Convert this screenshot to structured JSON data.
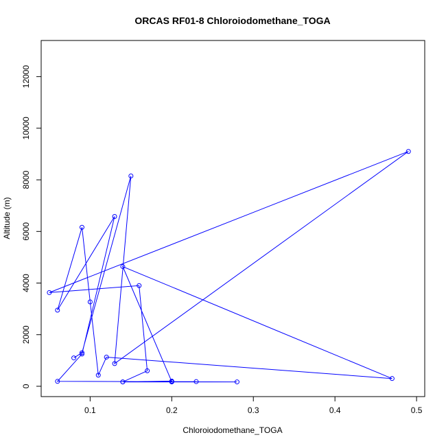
{
  "chart_data": {
    "type": "line",
    "title": "ORCAS RF01-8 Chloroiodomethane_TOGA",
    "xlabel": "Chloroiodomethane_TOGA",
    "ylabel": "Altitude (m)",
    "xlim": [
      0.04,
      0.51
    ],
    "ylim": [
      -400,
      13400
    ],
    "x_ticks": [
      0.1,
      0.2,
      0.3,
      0.4,
      0.5
    ],
    "x_tick_labels": [
      "0.1",
      "0.2",
      "0.3",
      "0.4",
      "0.5"
    ],
    "y_ticks": [
      0,
      2000,
      4000,
      6000,
      8000,
      10000,
      12000
    ],
    "y_tick_labels": [
      "0",
      "2000",
      "4000",
      "6000",
      "8000",
      "10000",
      "12000"
    ],
    "grid": false,
    "legend": "none",
    "series": [
      {
        "color": "#0000ff",
        "marker": "open-circle",
        "x": [
          0.2,
          0.23,
          0.2,
          0.14,
          0.28,
          0.06,
          0.09,
          0.13,
          0.06,
          0.09,
          0.1,
          0.11,
          0.12,
          0.47,
          0.14,
          0.2,
          0.2,
          0.14,
          0.17,
          0.16,
          0.05,
          0.49,
          0.13,
          0.15,
          0.09,
          0.08
        ],
        "y": [
          180,
          180,
          170,
          170,
          170,
          190,
          1250,
          6580,
          2950,
          6160,
          3270,
          430,
          1130,
          300,
          4640,
          180,
          200,
          170,
          600,
          3900,
          3630,
          9100,
          880,
          8150,
          1300,
          1100
        ]
      }
    ]
  }
}
